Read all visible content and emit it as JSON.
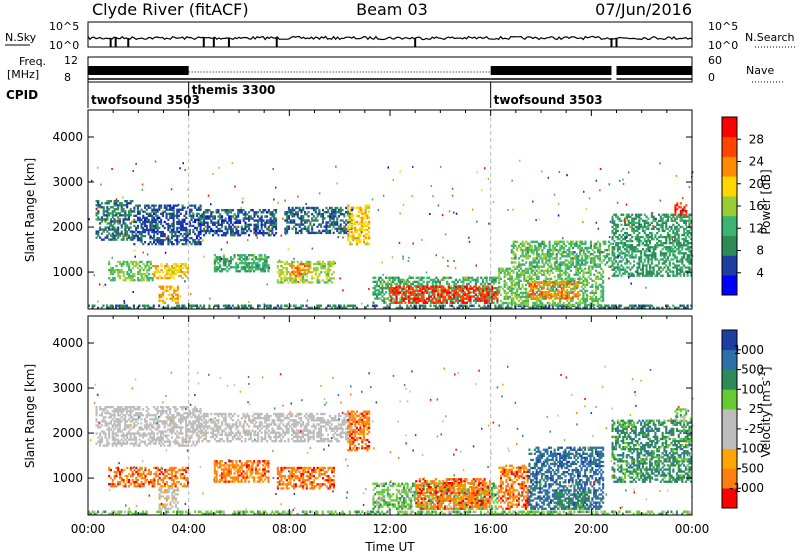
{
  "header": {
    "station": "Clyde River (fitACF)",
    "beam": "Beam 03",
    "date": "07/Jun/2016"
  },
  "top_panels": {
    "nsky_label": "N.Sky",
    "nsky_ticks": [
      "10^5",
      "10^0"
    ],
    "nsearch_label": "N.Search",
    "freq_label_1": "Freq.",
    "freq_label_2": "[MHz]",
    "freq_ticks": [
      "12",
      "8"
    ],
    "nave_ticks": [
      "60",
      "0"
    ],
    "nave_label": "Nave",
    "cpid_label": "CPID"
  },
  "cpid_segments": [
    {
      "name": "twofsound 3503",
      "start_h": 0.0
    },
    {
      "name": "themis 3300",
      "start_h": 4.0
    },
    {
      "name": "twofsound 3503",
      "start_h": 16.0
    }
  ],
  "colors": {
    "power": [
      "#0000ff",
      "#1f3fa0",
      "#2e8b57",
      "#3cb371",
      "#9acd32",
      "#ffd700",
      "#ff8c00",
      "#ff4500",
      "#ff0000"
    ],
    "velocity": [
      "#ff0000",
      "#ff7f0e",
      "#ffa500",
      "#bdbdbd",
      "#bdbdbd",
      "#66cc33",
      "#2e8b57",
      "#2f6fa8",
      "#1f3fa0"
    ]
  },
  "chart_data": [
    {
      "type": "heatmap",
      "panel": "power",
      "xlabel": "",
      "ylabel": "Slant Range [km]",
      "xlim": [
        0,
        24
      ],
      "ylim": [
        180,
        4600
      ],
      "yticks": [
        1000,
        2000,
        3000,
        4000
      ],
      "xticks": [
        "00:00",
        "04:00",
        "08:00",
        "12:00",
        "16:00",
        "20:00",
        "00:00"
      ],
      "colorbar_label": "Power [dB]",
      "colorbar_ticks": [
        "4",
        "8",
        "12",
        "16",
        "20",
        "24",
        "28"
      ],
      "colorbar_range": [
        0,
        32
      ],
      "regions": [
        {
          "t0": 0.0,
          "t1": 24.0,
          "r0": 180,
          "r1": 280,
          "value": 8
        },
        {
          "t0": 0.3,
          "t1": 1.8,
          "r0": 1700,
          "r1": 2600,
          "value": 8
        },
        {
          "t0": 1.8,
          "t1": 4.5,
          "r0": 1600,
          "r1": 2500,
          "value": 6
        },
        {
          "t0": 0.8,
          "t1": 2.6,
          "r0": 800,
          "r1": 1250,
          "value": 14
        },
        {
          "t0": 2.6,
          "t1": 4.0,
          "r0": 850,
          "r1": 1200,
          "value": 20
        },
        {
          "t0": 2.8,
          "t1": 3.6,
          "r0": 300,
          "r1": 700,
          "value": 22
        },
        {
          "t0": 5.0,
          "t1": 7.2,
          "r0": 1000,
          "r1": 1400,
          "value": 12
        },
        {
          "t0": 4.5,
          "t1": 7.5,
          "r0": 1800,
          "r1": 2400,
          "value": 6
        },
        {
          "t0": 7.5,
          "t1": 9.8,
          "r0": 750,
          "r1": 1250,
          "value": 16
        },
        {
          "t0": 8.0,
          "t1": 8.8,
          "r0": 900,
          "r1": 1200,
          "value": 24
        },
        {
          "t0": 7.8,
          "t1": 10.5,
          "r0": 1850,
          "r1": 2450,
          "value": 7
        },
        {
          "t0": 10.3,
          "t1": 11.2,
          "r0": 1600,
          "r1": 2500,
          "value": 20
        },
        {
          "t0": 11.3,
          "t1": 16.3,
          "r0": 300,
          "r1": 900,
          "value": 12
        },
        {
          "t0": 12.0,
          "t1": 16.3,
          "r0": 300,
          "r1": 700,
          "value": 28
        },
        {
          "t0": 16.3,
          "t1": 20.5,
          "r0": 250,
          "r1": 1100,
          "value": 14
        },
        {
          "t0": 17.5,
          "t1": 19.5,
          "r0": 400,
          "r1": 800,
          "value": 24
        },
        {
          "t0": 16.8,
          "t1": 20.8,
          "r0": 1100,
          "r1": 1700,
          "value": 13
        },
        {
          "t0": 20.8,
          "t1": 24.0,
          "r0": 900,
          "r1": 2300,
          "value": 10
        },
        {
          "t0": 23.3,
          "t1": 23.8,
          "r0": 2250,
          "r1": 2550,
          "value": 28
        }
      ]
    },
    {
      "type": "heatmap",
      "panel": "velocity",
      "xlabel": "Time UT",
      "ylabel": "Slant Range [km]",
      "xlim": [
        0,
        24
      ],
      "ylim": [
        180,
        4600
      ],
      "yticks": [
        1000,
        2000,
        3000,
        4000
      ],
      "xticks": [
        "00:00",
        "04:00",
        "08:00",
        "12:00",
        "16:00",
        "20:00",
        "00:00"
      ],
      "colorbar_label": "Velocity [m s^-1]",
      "colorbar_ticks": [
        "-1000",
        "-500",
        "-100",
        "-25",
        "25",
        "100",
        "500",
        "1000"
      ],
      "colorbar_range": [
        0,
        9
      ],
      "regions": [
        {
          "t0": 0.0,
          "t1": 24.0,
          "r0": 180,
          "r1": 280,
          "value": 5.5
        },
        {
          "t0": 0.3,
          "t1": 4.5,
          "r0": 1700,
          "r1": 2600,
          "value": 4
        },
        {
          "t0": 4.5,
          "t1": 10.5,
          "r0": 1800,
          "r1": 2450,
          "value": 4
        },
        {
          "t0": 0.8,
          "t1": 2.6,
          "r0": 800,
          "r1": 1250,
          "value": 1.5
        },
        {
          "t0": 2.6,
          "t1": 4.0,
          "r0": 800,
          "r1": 1250,
          "value": 1.5
        },
        {
          "t0": 2.8,
          "t1": 3.6,
          "r0": 300,
          "r1": 800,
          "value": 3.5
        },
        {
          "t0": 5.0,
          "t1": 7.2,
          "r0": 900,
          "r1": 1400,
          "value": 1.5
        },
        {
          "t0": 7.5,
          "t1": 9.8,
          "r0": 750,
          "r1": 1250,
          "value": 1.5
        },
        {
          "t0": 10.3,
          "t1": 11.2,
          "r0": 1600,
          "r1": 2500,
          "value": 1.5
        },
        {
          "t0": 11.3,
          "t1": 16.3,
          "r0": 300,
          "r1": 900,
          "value": 5.5
        },
        {
          "t0": 13.0,
          "t1": 16.0,
          "r0": 300,
          "r1": 1000,
          "value": 1.5
        },
        {
          "t0": 16.3,
          "t1": 17.5,
          "r0": 300,
          "r1": 1300,
          "value": 1.5
        },
        {
          "t0": 17.5,
          "t1": 20.5,
          "r0": 300,
          "r1": 1700,
          "value": 7.5
        },
        {
          "t0": 18.5,
          "t1": 20.0,
          "r0": 300,
          "r1": 700,
          "value": 6.5
        },
        {
          "t0": 20.8,
          "t1": 24.0,
          "r0": 900,
          "r1": 2300,
          "value": 6.5
        },
        {
          "t0": 23.3,
          "t1": 23.8,
          "r0": 2250,
          "r1": 2550,
          "value": 5.5
        }
      ]
    }
  ]
}
